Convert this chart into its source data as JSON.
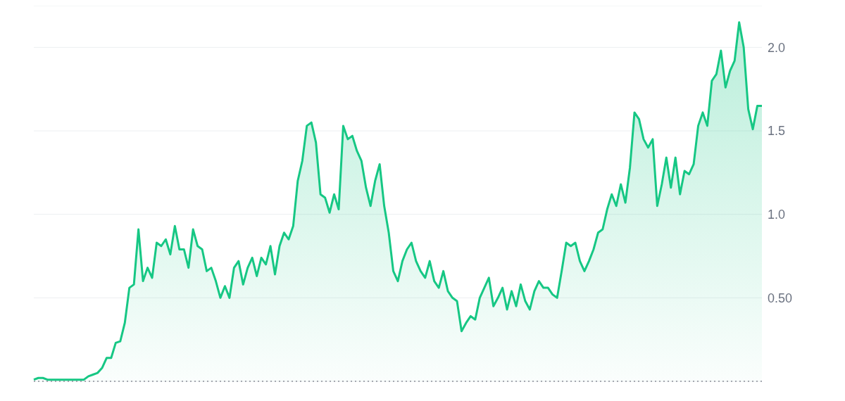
{
  "chart_data": {
    "type": "area",
    "categories": [
      null,
      null,
      null,
      null,
      null,
      null,
      null,
      null,
      null,
      null,
      null,
      null,
      null,
      null,
      null,
      null,
      null,
      null,
      null,
      null,
      null,
      null,
      null,
      null,
      null,
      null,
      null,
      null,
      null,
      null,
      null,
      null,
      null,
      null,
      null,
      null,
      null,
      null,
      null,
      null,
      null,
      null,
      null,
      null,
      null,
      null,
      null,
      null,
      null,
      null,
      null,
      null,
      null,
      null,
      null,
      null,
      null,
      null,
      null,
      null,
      null,
      null,
      null,
      null,
      null,
      null,
      null,
      null,
      null,
      null,
      null,
      null,
      null,
      null,
      null,
      null,
      null,
      null,
      null,
      null,
      null,
      null,
      null,
      null,
      null,
      null,
      null,
      null,
      null,
      null,
      null,
      null,
      null,
      null,
      null,
      null,
      null,
      null,
      null,
      null,
      null,
      null,
      null,
      null,
      null,
      null,
      null,
      null,
      null,
      null,
      null,
      null,
      null,
      null,
      null,
      null,
      null,
      null,
      null,
      null,
      null,
      null,
      null,
      null,
      null,
      null,
      null,
      null,
      null,
      null,
      null,
      null,
      null,
      null,
      null,
      null,
      null,
      null,
      null,
      null,
      null,
      null,
      null,
      null,
      null,
      null,
      null,
      null,
      null,
      null,
      null,
      null,
      null,
      null,
      null,
      null,
      null,
      null,
      null,
      null,
      null
    ],
    "series": [
      {
        "color": "#16c784",
        "values": [
          0.01,
          0.02,
          0.02,
          0.01,
          0.01,
          0.01,
          0.01,
          0.01,
          0.01,
          0.01,
          0.01,
          0.01,
          0.03,
          0.04,
          0.05,
          0.08,
          0.14,
          0.14,
          0.23,
          0.24,
          0.35,
          0.56,
          0.58,
          0.91,
          0.6,
          0.68,
          0.62,
          0.83,
          0.81,
          0.85,
          0.76,
          0.93,
          0.79,
          0.79,
          0.68,
          0.91,
          0.81,
          0.79,
          0.66,
          0.68,
          0.6,
          0.5,
          0.57,
          0.5,
          0.68,
          0.72,
          0.58,
          0.68,
          0.74,
          0.63,
          0.74,
          0.7,
          0.81,
          0.64,
          0.81,
          0.89,
          0.85,
          0.93,
          1.2,
          1.32,
          1.53,
          1.55,
          1.43,
          1.12,
          1.1,
          1.01,
          1.12,
          1.03,
          1.53,
          1.45,
          1.47,
          1.38,
          1.32,
          1.16,
          1.05,
          1.2,
          1.3,
          1.05,
          0.89,
          0.66,
          0.6,
          0.72,
          0.79,
          0.83,
          0.72,
          0.66,
          0.62,
          0.72,
          0.6,
          0.56,
          0.66,
          0.54,
          0.5,
          0.48,
          0.3,
          0.35,
          0.39,
          0.37,
          0.5,
          0.56,
          0.62,
          0.45,
          0.5,
          0.56,
          0.43,
          0.54,
          0.45,
          0.58,
          0.48,
          0.43,
          0.54,
          0.6,
          0.56,
          0.56,
          0.52,
          0.5,
          0.66,
          0.83,
          0.81,
          0.83,
          0.72,
          0.66,
          0.72,
          0.79,
          0.89,
          0.91,
          1.03,
          1.12,
          1.05,
          1.18,
          1.07,
          1.28,
          1.61,
          1.57,
          1.45,
          1.4,
          1.45,
          1.05,
          1.18,
          1.34,
          1.16,
          1.34,
          1.12,
          1.26,
          1.24,
          1.3,
          1.53,
          1.61,
          1.53,
          1.8,
          1.84,
          1.98,
          1.76,
          1.86,
          1.92,
          2.15,
          2.0,
          1.63,
          1.51,
          1.65,
          1.65
        ]
      }
    ],
    "ylim": [
      0,
      2.25
    ],
    "yticks": [
      {
        "value": 0.5,
        "label": "0.50"
      },
      {
        "value": 1,
        "label": "1.0"
      },
      {
        "value": 1.5,
        "label": "1.5"
      },
      {
        "value": 2,
        "label": "2.0"
      }
    ],
    "grid": "y",
    "tick_labels": "y",
    "line_style": "solid",
    "marker": "none",
    "ref_lines": [
      {
        "axis": "y",
        "value": 0,
        "color": "#8a8f98",
        "line_style": "dotted"
      }
    ]
  }
}
